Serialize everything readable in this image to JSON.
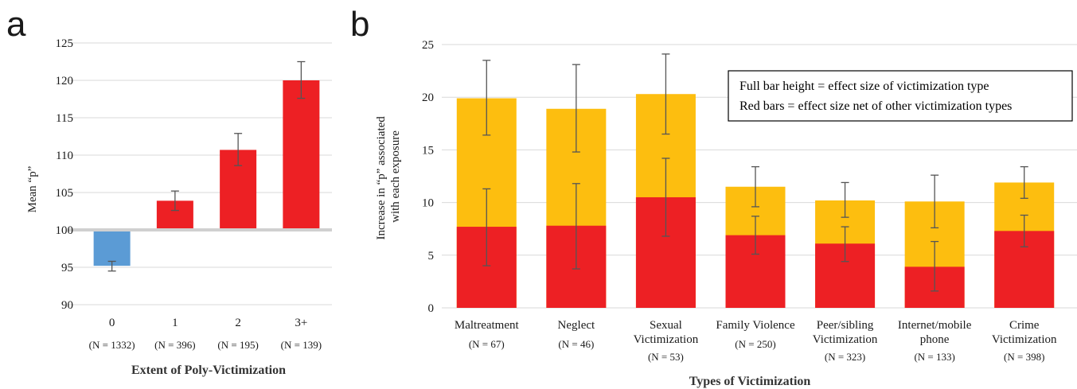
{
  "colors": {
    "red": "#ED2024",
    "gold": "#FDBE0F",
    "blue": "#5B9BD5",
    "grid": "#D9D9D9",
    "baseline": "#D0D0D0",
    "errorbar": "#555555",
    "text": "#1a1a1a"
  },
  "chart_data": [
    {
      "panel_label": "a",
      "type": "bar",
      "ylabel": "Mean “p”",
      "xlabel": "Extent of Poly-Victimization",
      "ylim": [
        90,
        125
      ],
      "yticks": [
        90,
        95,
        100,
        105,
        110,
        115,
        120,
        125
      ],
      "baseline": 100,
      "grid": true,
      "categories": [
        "0",
        "1",
        "2",
        "3+"
      ],
      "sample_sizes": [
        "(N = 1332)",
        "(N = 396)",
        "(N = 195)",
        "(N = 139)"
      ],
      "values": [
        95.2,
        103.9,
        110.7,
        120.0
      ],
      "error": [
        [
          94.5,
          95.8
        ],
        [
          102.6,
          105.2
        ],
        [
          108.6,
          112.9
        ],
        [
          117.6,
          122.5
        ]
      ],
      "bar_colors": [
        "blue",
        "red",
        "red",
        "red"
      ]
    },
    {
      "panel_label": "b",
      "type": "bar",
      "ylabel": "Increase in “p” associated with each exposure",
      "ylabel_lines": [
        "Increase in “p” associated",
        "with each exposure"
      ],
      "xlabel": "Types of Victimization",
      "ylim": [
        0,
        25
      ],
      "yticks": [
        0,
        5,
        10,
        15,
        20,
        25
      ],
      "grid": true,
      "categories": [
        [
          "Maltreatment"
        ],
        [
          "Neglect"
        ],
        [
          "Sexual",
          "Victimization"
        ],
        [
          "Family Violence"
        ],
        [
          "Peer/sibling",
          "Victimization"
        ],
        [
          "Internet/mobile",
          "phone"
        ],
        [
          "Crime",
          "Victimization"
        ]
      ],
      "sample_sizes": [
        "(N = 67)",
        "(N = 46)",
        "(N = 53)",
        "(N = 250)",
        "(N = 323)",
        "(N = 133)",
        "(N = 398)"
      ],
      "series": [
        {
          "role": "full",
          "color": "gold",
          "values": [
            19.9,
            18.9,
            20.3,
            11.5,
            10.2,
            10.1,
            11.9
          ],
          "error": [
            [
              16.4,
              23.5
            ],
            [
              14.8,
              23.1
            ],
            [
              16.5,
              24.1
            ],
            [
              9.6,
              13.4
            ],
            [
              8.6,
              11.9
            ],
            [
              7.6,
              12.6
            ],
            [
              10.4,
              13.4
            ]
          ]
        },
        {
          "role": "net",
          "color": "red",
          "values": [
            7.7,
            7.8,
            10.5,
            6.9,
            6.1,
            3.9,
            7.3
          ],
          "error": [
            [
              4.0,
              11.3
            ],
            [
              3.7,
              11.8
            ],
            [
              6.8,
              14.2
            ],
            [
              5.1,
              8.7
            ],
            [
              4.4,
              7.7
            ],
            [
              1.6,
              6.3
            ],
            [
              5.8,
              8.8
            ]
          ]
        }
      ],
      "legend_lines": [
        "Full bar height = effect size of victimization type",
        "Red bars = effect size net of other victimization types"
      ],
      "legend_position": "top-right"
    }
  ]
}
